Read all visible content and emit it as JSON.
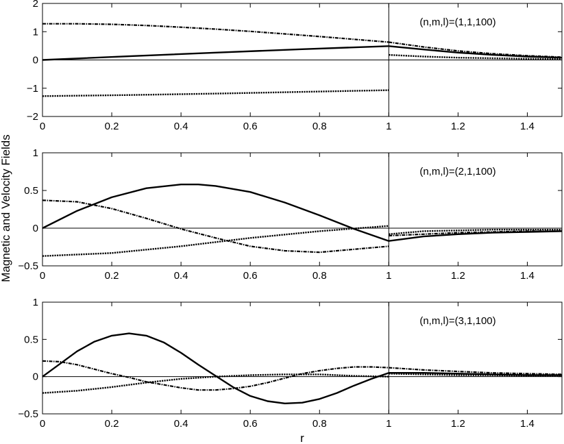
{
  "figure": {
    "ylabel": "Magnetic and Velocity Fields",
    "xlabel": "r"
  },
  "chart_data": [
    {
      "type": "line",
      "annotation": "(n,m,l)=(1,1,100)",
      "xlim": [
        0,
        1.5
      ],
      "ylim": [
        -2,
        2
      ],
      "xticks": [
        0,
        0.2,
        0.4,
        0.6,
        0.8,
        1,
        1.2,
        1.4
      ],
      "yticks": [
        2,
        1,
        0,
        -1,
        -2
      ],
      "ytick_labels": [
        "2",
        "1",
        "0",
        "−1",
        "−2"
      ],
      "series": [
        {
          "style": "solid",
          "segments": [
            {
              "x": [
                0,
                0.25,
                0.5,
                0.75,
                1.0
              ],
              "y": [
                0,
                0.13,
                0.26,
                0.38,
                0.49
              ]
            },
            {
              "x": [
                1.0,
                1.1,
                1.2,
                1.3,
                1.4,
                1.5
              ],
              "y": [
                0.49,
                0.37,
                0.26,
                0.18,
                0.12,
                0.08
              ]
            }
          ]
        },
        {
          "style": "dashdot",
          "segments": [
            {
              "x": [
                0,
                0.1,
                0.2,
                0.3,
                0.4,
                0.5,
                0.6,
                0.7,
                0.8,
                0.9,
                1.0
              ],
              "y": [
                1.28,
                1.28,
                1.26,
                1.22,
                1.16,
                1.09,
                1.01,
                0.92,
                0.83,
                0.73,
                0.63
              ]
            },
            {
              "x": [
                1.0,
                1.1,
                1.2,
                1.3,
                1.4,
                1.5
              ],
              "y": [
                0.63,
                0.46,
                0.32,
                0.22,
                0.15,
                0.1
              ]
            }
          ]
        },
        {
          "style": "dotted",
          "segments": [
            {
              "x": [
                0,
                0.25,
                0.5,
                0.75,
                1.0
              ],
              "y": [
                -1.28,
                -1.24,
                -1.19,
                -1.13,
                -1.07
              ]
            },
            {
              "x": [
                1.0,
                1.1,
                1.2,
                1.3,
                1.4,
                1.5
              ],
              "y": [
                0.18,
                0.12,
                0.08,
                0.06,
                0.04,
                0.03
              ]
            }
          ]
        }
      ]
    },
    {
      "type": "line",
      "annotation": "(n,m,l)=(2,1,100)",
      "xlim": [
        0,
        1.5
      ],
      "ylim": [
        -0.5,
        1
      ],
      "xticks": [
        0,
        0.2,
        0.4,
        0.6,
        0.8,
        1,
        1.2,
        1.4
      ],
      "yticks": [
        1,
        0.5,
        0,
        -0.5
      ],
      "ytick_labels": [
        "1",
        "0.5",
        "0",
        "−0.5"
      ],
      "series": [
        {
          "style": "solid",
          "segments": [
            {
              "x": [
                0,
                0.1,
                0.2,
                0.3,
                0.4,
                0.45,
                0.5,
                0.6,
                0.7,
                0.8,
                0.9,
                1.0
              ],
              "y": [
                0,
                0.23,
                0.41,
                0.53,
                0.58,
                0.58,
                0.56,
                0.48,
                0.34,
                0.17,
                -0.01,
                -0.17
              ]
            },
            {
              "x": [
                1.0,
                1.1,
                1.2,
                1.3,
                1.4,
                1.5
              ],
              "y": [
                -0.17,
                -0.11,
                -0.08,
                -0.06,
                -0.05,
                -0.04
              ]
            }
          ]
        },
        {
          "style": "dashdot",
          "segments": [
            {
              "x": [
                0,
                0.1,
                0.2,
                0.3,
                0.4,
                0.5,
                0.6,
                0.7,
                0.8,
                0.9,
                1.0
              ],
              "y": [
                0.37,
                0.35,
                0.26,
                0.13,
                -0.01,
                -0.13,
                -0.24,
                -0.3,
                -0.32,
                -0.28,
                -0.24
              ]
            },
            {
              "x": [
                1.0,
                1.1,
                1.2,
                1.3,
                1.4,
                1.5
              ],
              "y": [
                -0.1,
                -0.08,
                -0.06,
                -0.05,
                -0.04,
                -0.04
              ]
            }
          ]
        },
        {
          "style": "dotted",
          "segments": [
            {
              "x": [
                0,
                0.2,
                0.4,
                0.6,
                0.8,
                1.0
              ],
              "y": [
                -0.37,
                -0.33,
                -0.24,
                -0.13,
                -0.04,
                0.03
              ]
            },
            {
              "x": [
                1.0,
                1.1,
                1.2,
                1.3,
                1.4,
                1.5
              ],
              "y": [
                -0.08,
                -0.04,
                -0.03,
                -0.02,
                -0.02,
                -0.02
              ]
            }
          ]
        }
      ]
    },
    {
      "type": "line",
      "annotation": "(n,m,l)=(3,1,100)",
      "xlim": [
        0,
        1.5
      ],
      "ylim": [
        -0.5,
        1
      ],
      "xticks": [
        0,
        0.2,
        0.4,
        0.6,
        0.8,
        1,
        1.2,
        1.4
      ],
      "yticks": [
        1,
        0.5,
        0,
        -0.5
      ],
      "ytick_labels": [
        "1",
        "0.5",
        "0",
        "−0.5"
      ],
      "series": [
        {
          "style": "solid",
          "segments": [
            {
              "x": [
                0,
                0.05,
                0.1,
                0.15,
                0.2,
                0.25,
                0.3,
                0.35,
                0.4,
                0.45,
                0.5,
                0.55,
                0.6,
                0.65,
                0.7,
                0.75,
                0.8,
                0.85,
                0.9,
                0.95,
                1.0
              ],
              "y": [
                0,
                0.17,
                0.34,
                0.47,
                0.55,
                0.58,
                0.55,
                0.46,
                0.32,
                0.16,
                0.01,
                -0.14,
                -0.26,
                -0.33,
                -0.36,
                -0.35,
                -0.3,
                -0.22,
                -0.12,
                -0.03,
                0.05
              ]
            },
            {
              "x": [
                1.0,
                1.1,
                1.2,
                1.3,
                1.4,
                1.5
              ],
              "y": [
                0.05,
                0.05,
                0.04,
                0.03,
                0.02,
                0.02
              ]
            }
          ]
        },
        {
          "style": "dashdot",
          "segments": [
            {
              "x": [
                0,
                0.05,
                0.1,
                0.15,
                0.2,
                0.25,
                0.3,
                0.35,
                0.4,
                0.45,
                0.5,
                0.55,
                0.6,
                0.65,
                0.7,
                0.75,
                0.8,
                0.85,
                0.9,
                0.95,
                1.0
              ],
              "y": [
                0.21,
                0.2,
                0.16,
                0.1,
                0.04,
                -0.01,
                -0.07,
                -0.11,
                -0.15,
                -0.18,
                -0.18,
                -0.16,
                -0.13,
                -0.08,
                -0.02,
                0.04,
                0.08,
                0.11,
                0.13,
                0.13,
                0.12
              ]
            },
            {
              "x": [
                1.0,
                1.1,
                1.2,
                1.3,
                1.4,
                1.5
              ],
              "y": [
                0.12,
                0.09,
                0.07,
                0.05,
                0.04,
                0.03
              ]
            }
          ]
        },
        {
          "style": "dotted",
          "segments": [
            {
              "x": [
                0,
                0.1,
                0.2,
                0.3,
                0.4,
                0.5,
                0.6,
                0.7,
                0.8,
                0.9,
                1.0
              ],
              "y": [
                -0.22,
                -0.19,
                -0.14,
                -0.08,
                -0.03,
                0.0,
                0.02,
                0.03,
                0.03,
                0.01,
                0.0
              ]
            },
            {
              "x": [
                1.0,
                1.1,
                1.2,
                1.3,
                1.4,
                1.5
              ],
              "y": [
                0.04,
                0.03,
                0.02,
                0.02,
                0.01,
                0.01
              ]
            }
          ]
        }
      ]
    }
  ]
}
